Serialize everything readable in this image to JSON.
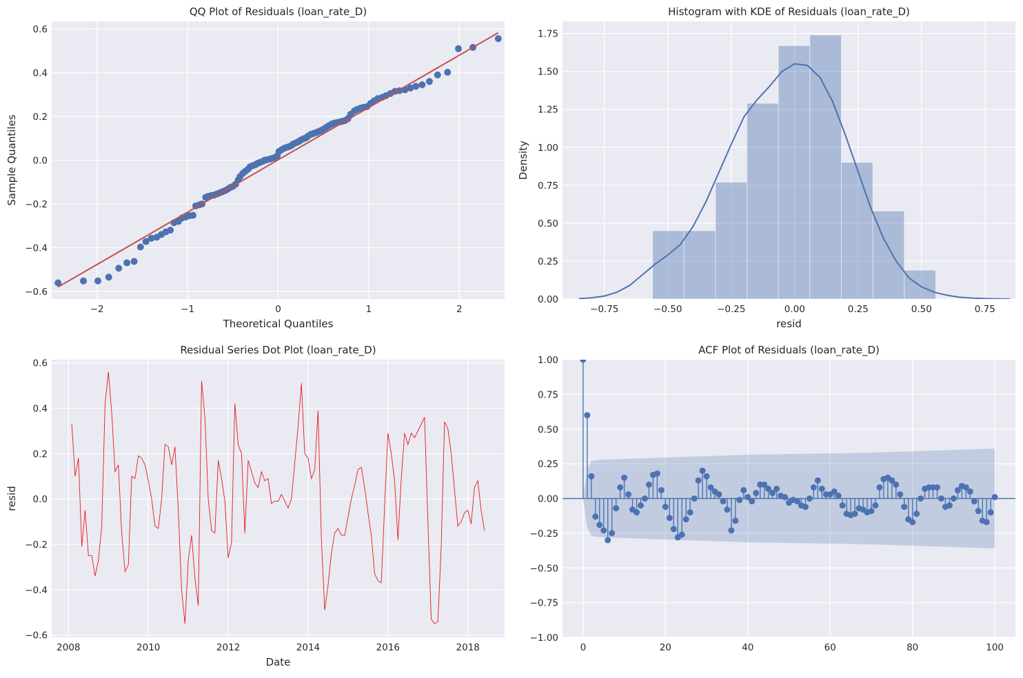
{
  "chart_data": [
    {
      "type": "scatter",
      "title": "QQ Plot of Residuals (loan_rate_D)",
      "xlabel": "Theoretical Quantiles",
      "ylabel": "Sample Quantiles",
      "xlim": [
        -2.5,
        2.5
      ],
      "ylim": [
        -0.635,
        0.635
      ],
      "xticks": [
        -2,
        -1,
        0,
        1,
        2
      ],
      "xtick_labels": [
        "−2",
        "−1",
        "0",
        "1",
        "2"
      ],
      "yticks": [
        -0.6,
        -0.4,
        -0.2,
        0.0,
        0.2,
        0.4,
        0.6
      ],
      "ytick_labels": [
        "−0.6",
        "−0.4",
        "−0.2",
        "0.0",
        "0.2",
        "0.4",
        "0.6"
      ],
      "grid": true,
      "point_color": "#4c72b0",
      "line_color": "#c44e52",
      "reference_line": {
        "x": [
          -2.43,
          2.43
        ],
        "y": [
          -0.58,
          0.583
        ]
      },
      "points": [
        [
          -2.43,
          -0.561
        ],
        [
          -2.15,
          -0.552
        ],
        [
          -1.99,
          -0.552
        ],
        [
          -1.87,
          -0.535
        ],
        [
          -1.76,
          -0.494
        ],
        [
          -1.67,
          -0.469
        ],
        [
          -1.59,
          -0.463
        ],
        [
          -1.52,
          -0.397
        ],
        [
          -1.46,
          -0.372
        ],
        [
          -1.4,
          -0.357
        ],
        [
          -1.34,
          -0.352
        ],
        [
          -1.29,
          -0.34
        ],
        [
          -1.24,
          -0.328
        ],
        [
          -1.19,
          -0.32
        ],
        [
          -1.15,
          -0.286
        ],
        [
          -1.1,
          -0.28
        ],
        [
          -1.06,
          -0.264
        ],
        [
          -1.02,
          -0.26
        ],
        [
          -0.98,
          -0.254
        ],
        [
          -0.94,
          -0.252
        ],
        [
          -0.91,
          -0.209
        ],
        [
          -0.87,
          -0.204
        ],
        [
          -0.84,
          -0.2
        ],
        [
          -0.8,
          -0.17
        ],
        [
          -0.77,
          -0.165
        ],
        [
          -0.74,
          -0.162
        ],
        [
          -0.71,
          -0.16
        ],
        [
          -0.68,
          -0.155
        ],
        [
          -0.65,
          -0.15
        ],
        [
          -0.62,
          -0.145
        ],
        [
          -0.59,
          -0.14
        ],
        [
          -0.56,
          -0.133
        ],
        [
          -0.53,
          -0.125
        ],
        [
          -0.5,
          -0.12
        ],
        [
          -0.47,
          -0.11
        ],
        [
          -0.44,
          -0.09
        ],
        [
          -0.42,
          -0.075
        ],
        [
          -0.39,
          -0.06
        ],
        [
          -0.36,
          -0.05
        ],
        [
          -0.33,
          -0.04
        ],
        [
          -0.31,
          -0.03
        ],
        [
          -0.28,
          -0.025
        ],
        [
          -0.25,
          -0.02
        ],
        [
          -0.23,
          -0.015
        ],
        [
          -0.2,
          -0.01
        ],
        [
          -0.17,
          -0.005
        ],
        [
          -0.15,
          0.0
        ],
        [
          -0.12,
          0.002
        ],
        [
          -0.09,
          0.005
        ],
        [
          -0.07,
          0.008
        ],
        [
          -0.04,
          0.012
        ],
        [
          -0.01,
          0.02
        ],
        [
          0.01,
          0.04
        ],
        [
          0.04,
          0.048
        ],
        [
          0.07,
          0.055
        ],
        [
          0.09,
          0.058
        ],
        [
          0.12,
          0.062
        ],
        [
          0.15,
          0.068
        ],
        [
          0.17,
          0.075
        ],
        [
          0.2,
          0.08
        ],
        [
          0.23,
          0.086
        ],
        [
          0.25,
          0.092
        ],
        [
          0.28,
          0.098
        ],
        [
          0.31,
          0.103
        ],
        [
          0.33,
          0.11
        ],
        [
          0.36,
          0.118
        ],
        [
          0.39,
          0.122
        ],
        [
          0.42,
          0.126
        ],
        [
          0.44,
          0.13
        ],
        [
          0.47,
          0.135
        ],
        [
          0.5,
          0.142
        ],
        [
          0.53,
          0.15
        ],
        [
          0.56,
          0.158
        ],
        [
          0.59,
          0.165
        ],
        [
          0.62,
          0.17
        ],
        [
          0.65,
          0.172
        ],
        [
          0.68,
          0.175
        ],
        [
          0.71,
          0.178
        ],
        [
          0.74,
          0.182
        ],
        [
          0.77,
          0.19
        ],
        [
          0.8,
          0.21
        ],
        [
          0.84,
          0.225
        ],
        [
          0.87,
          0.232
        ],
        [
          0.91,
          0.238
        ],
        [
          0.94,
          0.242
        ],
        [
          0.98,
          0.245
        ],
        [
          1.02,
          0.26
        ],
        [
          1.06,
          0.272
        ],
        [
          1.1,
          0.282
        ],
        [
          1.15,
          0.288
        ],
        [
          1.19,
          0.295
        ],
        [
          1.24,
          0.305
        ],
        [
          1.29,
          0.315
        ],
        [
          1.34,
          0.318
        ],
        [
          1.4,
          0.322
        ],
        [
          1.46,
          0.33
        ],
        [
          1.52,
          0.338
        ],
        [
          1.59,
          0.345
        ],
        [
          1.67,
          0.36
        ],
        [
          1.76,
          0.39
        ],
        [
          1.87,
          0.402
        ],
        [
          1.99,
          0.51
        ],
        [
          2.15,
          0.516
        ],
        [
          2.43,
          0.556
        ]
      ]
    },
    {
      "type": "bar",
      "title": "Histogram with KDE of Residuals (loan_rate_D)",
      "xlabel": "resid",
      "ylabel": "Density",
      "xlim": [
        -0.915,
        0.87
      ],
      "ylim": [
        0,
        1.83
      ],
      "xticks": [
        -0.75,
        -0.5,
        -0.25,
        0.0,
        0.25,
        0.5,
        0.75
      ],
      "xtick_labels": [
        "−0.75",
        "−0.50",
        "−0.25",
        "0.00",
        "0.25",
        "0.50",
        "0.75"
      ],
      "yticks": [
        0,
        0.25,
        0.5,
        0.75,
        1.0,
        1.25,
        1.5,
        1.75
      ],
      "ytick_labels": [
        "0.00",
        "0.25",
        "0.50",
        "0.75",
        "1.00",
        "1.25",
        "1.50",
        "1.75"
      ],
      "grid": true,
      "bar_color": "#4c72b0",
      "line_color": "#4c72b0",
      "bin_edges": [
        -0.56,
        -0.436,
        -0.312,
        -0.188,
        -0.064,
        0.06,
        0.184,
        0.308,
        0.432,
        0.556
      ],
      "values": [
        0.45,
        0.45,
        0.77,
        1.29,
        1.67,
        1.74,
        0.9,
        0.58,
        0.19
      ],
      "kde": {
        "x": [
          -0.85,
          -0.8,
          -0.75,
          -0.7,
          -0.65,
          -0.6,
          -0.55,
          -0.5,
          -0.45,
          -0.4,
          -0.35,
          -0.3,
          -0.25,
          -0.2,
          -0.15,
          -0.1,
          -0.05,
          0.0,
          0.05,
          0.1,
          0.15,
          0.2,
          0.25,
          0.3,
          0.35,
          0.4,
          0.45,
          0.5,
          0.55,
          0.6,
          0.65,
          0.7,
          0.75,
          0.8,
          0.85
        ],
        "y": [
          0.003,
          0.008,
          0.02,
          0.045,
          0.09,
          0.16,
          0.23,
          0.29,
          0.36,
          0.48,
          0.64,
          0.83,
          1.02,
          1.2,
          1.31,
          1.4,
          1.5,
          1.55,
          1.54,
          1.46,
          1.3,
          1.08,
          0.84,
          0.6,
          0.4,
          0.25,
          0.14,
          0.08,
          0.045,
          0.025,
          0.012,
          0.006,
          0.003,
          0.001,
          0.0
        ]
      }
    },
    {
      "type": "line",
      "title": "Residual Series Dot Plot (loan_rate_D)",
      "xlabel": "Date",
      "ylabel": "resid",
      "xlim": [
        2007.58,
        2018.92
      ],
      "ylim": [
        -0.61,
        0.614
      ],
      "xticks": [
        2008,
        2010,
        2012,
        2014,
        2016,
        2018
      ],
      "xtick_labels": [
        "2008",
        "2010",
        "2012",
        "2014",
        "2016",
        "2018"
      ],
      "yticks": [
        -0.6,
        -0.4,
        -0.2,
        0.0,
        0.2,
        0.4,
        0.6
      ],
      "ytick_labels": [
        "−0.6",
        "−0.4",
        "−0.2",
        "0.0",
        "0.2",
        "0.4",
        "0.6"
      ],
      "grid": true,
      "line_color": "#e31a1c",
      "x_start": 2008.083,
      "x_step": 0.08333,
      "values": [
        0.33,
        0.1,
        0.18,
        -0.21,
        -0.05,
        -0.25,
        -0.25,
        -0.34,
        -0.27,
        -0.12,
        0.42,
        0.56,
        0.38,
        0.12,
        0.15,
        -0.15,
        -0.32,
        -0.29,
        0.1,
        0.09,
        0.19,
        0.18,
        0.15,
        0.08,
        0.0,
        -0.12,
        -0.13,
        0.0,
        0.24,
        0.23,
        0.15,
        0.23,
        -0.05,
        -0.4,
        -0.55,
        -0.27,
        -0.16,
        -0.35,
        -0.47,
        0.52,
        0.36,
        0.0,
        -0.14,
        -0.15,
        0.17,
        0.09,
        -0.01,
        -0.26,
        -0.19,
        0.42,
        0.24,
        0.2,
        -0.15,
        0.17,
        0.12,
        0.07,
        0.05,
        0.12,
        0.08,
        0.09,
        -0.02,
        -0.01,
        -0.01,
        0.02,
        -0.01,
        -0.04,
        0.0,
        0.16,
        0.32,
        0.51,
        0.2,
        0.18,
        0.09,
        0.13,
        0.39,
        -0.18,
        -0.49,
        -0.38,
        -0.24,
        -0.15,
        -0.13,
        -0.16,
        -0.16,
        -0.08,
        0.0,
        0.06,
        0.13,
        0.14,
        0.05,
        -0.06,
        -0.16,
        -0.33,
        -0.36,
        -0.37,
        -0.03,
        0.29,
        0.2,
        0.08,
        -0.18,
        0.09,
        0.29,
        0.24,
        0.29,
        0.27,
        0.3,
        0.33,
        0.36,
        -0.1,
        -0.53,
        -0.55,
        -0.54,
        -0.21,
        0.34,
        0.31,
        0.2,
        0.04,
        -0.12,
        -0.1,
        -0.06,
        -0.05,
        -0.11,
        0.05,
        0.08,
        -0.05,
        -0.14
      ]
    },
    {
      "type": "bar",
      "title": "ACF Plot of Residuals (loan_rate_D)",
      "xlabel": "",
      "ylabel": "",
      "xlim": [
        -5,
        105
      ],
      "ylim": [
        -1.0,
        1.0
      ],
      "xticks": [
        0,
        20,
        40,
        60,
        80,
        100
      ],
      "xtick_labels": [
        "0",
        "20",
        "40",
        "60",
        "80",
        "100"
      ],
      "yticks": [
        -1.0,
        -0.75,
        -0.5,
        -0.25,
        0.0,
        0.25,
        0.5,
        0.75,
        1.0
      ],
      "ytick_labels": [
        "−1.00",
        "−0.75",
        "−0.50",
        "−0.25",
        "0.00",
        "0.25",
        "0.50",
        "0.75",
        "1.00"
      ],
      "grid": true,
      "stem_color": "#4c72b0",
      "confidence_color": "#4c72b0",
      "lags_start": 0,
      "values": [
        1.0,
        0.6,
        0.16,
        -0.13,
        -0.19,
        -0.23,
        -0.3,
        -0.25,
        -0.07,
        0.08,
        0.15,
        0.03,
        -0.08,
        -0.1,
        -0.05,
        0.0,
        0.1,
        0.17,
        0.18,
        0.06,
        -0.06,
        -0.14,
        -0.22,
        -0.28,
        -0.26,
        -0.15,
        -0.1,
        0.0,
        0.13,
        0.2,
        0.16,
        0.08,
        0.05,
        0.03,
        -0.02,
        -0.08,
        -0.23,
        -0.16,
        -0.01,
        0.06,
        0.01,
        -0.02,
        0.04,
        0.1,
        0.1,
        0.07,
        0.04,
        0.07,
        0.02,
        0.01,
        -0.03,
        -0.01,
        -0.02,
        -0.05,
        -0.06,
        0.0,
        0.08,
        0.13,
        0.07,
        0.03,
        0.03,
        0.05,
        0.02,
        -0.05,
        -0.11,
        -0.12,
        -0.11,
        -0.07,
        -0.08,
        -0.1,
        -0.09,
        -0.05,
        0.08,
        0.14,
        0.15,
        0.13,
        0.1,
        0.03,
        -0.06,
        -0.15,
        -0.17,
        -0.11,
        0.0,
        0.07,
        0.08,
        0.08,
        0.08,
        0.0,
        -0.06,
        -0.05,
        0.0,
        0.06,
        0.09,
        0.08,
        0.05,
        -0.02,
        -0.09,
        -0.16,
        -0.17,
        -0.1,
        0.01
      ],
      "confidence_lags": [
        0,
        1,
        2,
        3,
        5,
        10,
        20,
        30,
        40,
        50,
        60,
        70,
        80,
        90,
        100
      ],
      "confidence_upper": [
        0.0,
        0.21,
        0.27,
        0.275,
        0.28,
        0.285,
        0.295,
        0.305,
        0.315,
        0.32,
        0.325,
        0.33,
        0.34,
        0.35,
        0.36
      ],
      "confidence_lower": [
        0.0,
        -0.21,
        -0.27,
        -0.275,
        -0.28,
        -0.285,
        -0.295,
        -0.305,
        -0.315,
        -0.32,
        -0.325,
        -0.33,
        -0.34,
        -0.35,
        -0.36
      ]
    }
  ]
}
